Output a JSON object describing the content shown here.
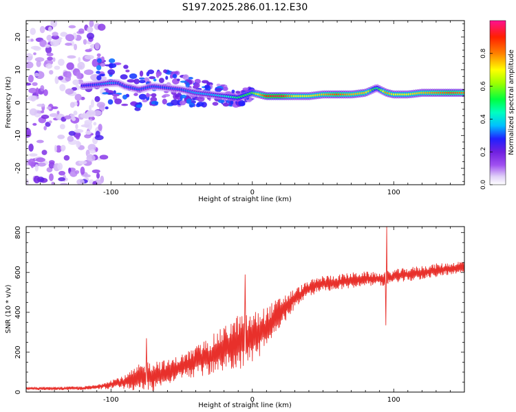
{
  "title": "S197.2025.286.01.12.E30",
  "chart_data": [
    {
      "type": "heatmap",
      "name": "spectrogram",
      "xlabel": "Height of straight line (km)",
      "ylabel": "Frequency (Hz)",
      "xlim": [
        -160,
        150
      ],
      "ylim": [
        -25,
        25
      ],
      "x_ticks": [
        -100,
        0,
        100
      ],
      "y_ticks": [
        -20,
        -10,
        0,
        10,
        20
      ],
      "ridge": {
        "x": [
          -125,
          -110,
          -100,
          -95,
          -90,
          -80,
          -70,
          -60,
          -50,
          -40,
          -30,
          -20,
          -10,
          0,
          10,
          20,
          30,
          40,
          50,
          60,
          70,
          80,
          88,
          95,
          100,
          110,
          120,
          130,
          140,
          150
        ],
        "freq": [
          5,
          5.5,
          6,
          6,
          5,
          4,
          5,
          4.5,
          4,
          3,
          2.5,
          2,
          1.5,
          3,
          2,
          2,
          2,
          2,
          2.5,
          2.5,
          2.5,
          3,
          4.5,
          3,
          2.5,
          2.5,
          3,
          3,
          3,
          3
        ],
        "amplitude": [
          0.25,
          0.3,
          0.35,
          0.3,
          0.3,
          0.3,
          0.3,
          0.3,
          0.3,
          0.35,
          0.35,
          0.4,
          0.5,
          0.55,
          0.9,
          0.95,
          0.7,
          0.7,
          0.75,
          0.85,
          0.75,
          0.75,
          0.45,
          0.8,
          0.7,
          0.7,
          0.75,
          0.8,
          0.85,
          0.8
        ]
      },
      "colorbar": {
        "label": "Normalized spectral amplitude",
        "range": [
          0,
          1
        ],
        "ticks": [
          "0.0",
          "0.2",
          "0.4",
          "0.6",
          "0.8"
        ]
      }
    },
    {
      "type": "line",
      "name": "snr",
      "xlabel": "Height of straight line (km)",
      "ylabel": "SNR (10 * v/v)",
      "xlim": [
        -160,
        150
      ],
      "ylim": [
        0,
        830
      ],
      "x_ticks": [
        -100,
        0,
        100
      ],
      "y_ticks": [
        0,
        200,
        400,
        600,
        800
      ],
      "series": [
        {
          "name": "SNR",
          "color": "#e8302b",
          "envelope_x": [
            -160,
            -140,
            -120,
            -110,
            -100,
            -90,
            -80,
            -70,
            -60,
            -50,
            -40,
            -30,
            -20,
            -10,
            0,
            10,
            20,
            30,
            40,
            50,
            60,
            70,
            80,
            90,
            100,
            110,
            120,
            130,
            140,
            150
          ],
          "envelope_mean": [
            18,
            18,
            20,
            25,
            40,
            50,
            70,
            85,
            100,
            130,
            150,
            180,
            220,
            250,
            270,
            320,
            400,
            470,
            520,
            545,
            550,
            560,
            570,
            565,
            580,
            590,
            600,
            610,
            620,
            630
          ],
          "envelope_spread": [
            8,
            8,
            10,
            12,
            25,
            35,
            70,
            80,
            60,
            60,
            80,
            100,
            110,
            140,
            130,
            110,
            80,
            50,
            40,
            40,
            40,
            40,
            35,
            35,
            35,
            35,
            35,
            35,
            30,
            30
          ],
          "spikes": [
            {
              "x": 95,
              "y": 830
            },
            {
              "x": 94.5,
              "y": 335
            },
            {
              "x": -75,
              "y": 270
            },
            {
              "x": -5,
              "y": 590
            }
          ]
        }
      ]
    }
  ],
  "colors": {
    "line": "#e8302b",
    "colormap": [
      "#ffffff",
      "#d9c4f5",
      "#8a2be2",
      "#2020ff",
      "#00d8ff",
      "#00ff40",
      "#ffff00",
      "#ff8000",
      "#ff0000",
      "#ff1080"
    ]
  }
}
